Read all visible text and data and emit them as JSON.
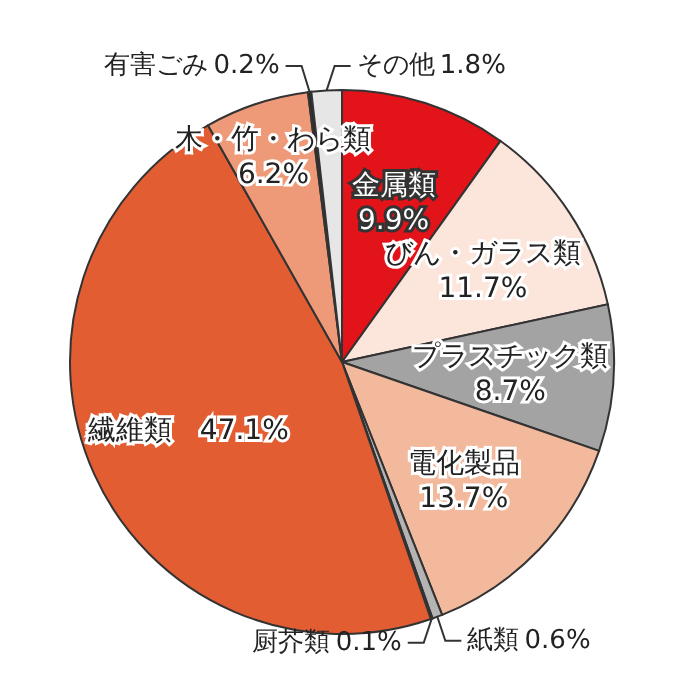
{
  "chart_data": {
    "type": "pie",
    "categories": [
      "金属類",
      "びん・ガラス類",
      "プラスチック類",
      "電化製品",
      "紙類",
      "厨芥類",
      "繊維類",
      "木・竹・わら類",
      "有害ごみ",
      "その他"
    ],
    "values": [
      9.9,
      11.7,
      8.7,
      13.7,
      0.6,
      0.1,
      47.1,
      6.2,
      0.2,
      1.8
    ],
    "value_labels": [
      "9.9%",
      "11.7%",
      "8.7%",
      "13.7%",
      "0.6%",
      "0.1%",
      "47.1%",
      "6.2%",
      "0.2%",
      "1.8%"
    ],
    "colors": [
      "#e2141a",
      "#fce5da",
      "#a3a3a3",
      "#f2b99d",
      "#b4b4b4",
      "#e05a33",
      "#e35d33",
      "#ee9a78",
      "#2a2a2a",
      "#e6e6e6"
    ]
  }
}
